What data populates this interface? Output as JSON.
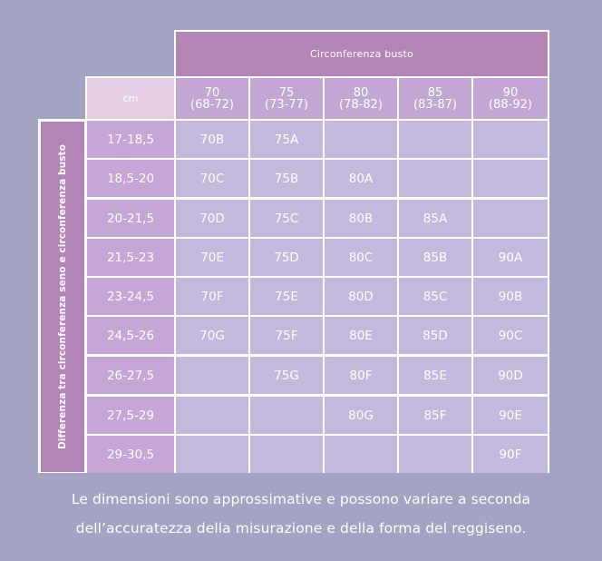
{
  "header": {
    "title": "Circonferenza busto",
    "unit_label": "cm",
    "columns": [
      {
        "size": "70",
        "range": "(68-72)"
      },
      {
        "size": "75",
        "range": "(73-77)"
      },
      {
        "size": "80",
        "range": "(78-82)"
      },
      {
        "size": "85",
        "range": "(83-87)"
      },
      {
        "size": "90",
        "range": "(88-92)"
      }
    ]
  },
  "side_label": "Differenza tra circonferenza seno e circonferenza busto",
  "rows": [
    {
      "label": "17-18,5",
      "cells": [
        "70B",
        "75A",
        "",
        "",
        ""
      ]
    },
    {
      "label": "18,5-20",
      "cells": [
        "70C",
        "75B",
        "80A",
        "",
        ""
      ]
    },
    {
      "label": "20-21,5",
      "cells": [
        "70D",
        "75C",
        "80B",
        "85A",
        ""
      ]
    },
    {
      "label": "21,5-23",
      "cells": [
        "70E",
        "75D",
        "80C",
        "85B",
        "90A"
      ]
    },
    {
      "label": "23-24,5",
      "cells": [
        "70F",
        "75E",
        "80D",
        "85C",
        "90B"
      ]
    },
    {
      "label": "24,5-26",
      "cells": [
        "70G",
        "75F",
        "80E",
        "85D",
        "90C"
      ]
    },
    {
      "label": "26-27,5",
      "cells": [
        "",
        "75G",
        "80F",
        "85E",
        "90D"
      ]
    },
    {
      "label": "27,5-29",
      "cells": [
        "",
        "",
        "80G",
        "85F",
        "90E"
      ]
    },
    {
      "label": "29-30,5",
      "cells": [
        "",
        "",
        "",
        "",
        "90F"
      ]
    }
  ],
  "note": {
    "line1": "Le dimensioni sono approssimative e possono variare a seconda",
    "line2": "dell’accuratezza della misurazione e della forma del reggiseno."
  },
  "colors": {
    "background": "#a3a3c3",
    "header_purple": "#b384b6",
    "header_lilac": "#c2a6d4",
    "cm_pink": "#e6cde6",
    "row_label": "#c5a6d7",
    "cell": "#c3b9dc",
    "lines": "#ffffff"
  }
}
